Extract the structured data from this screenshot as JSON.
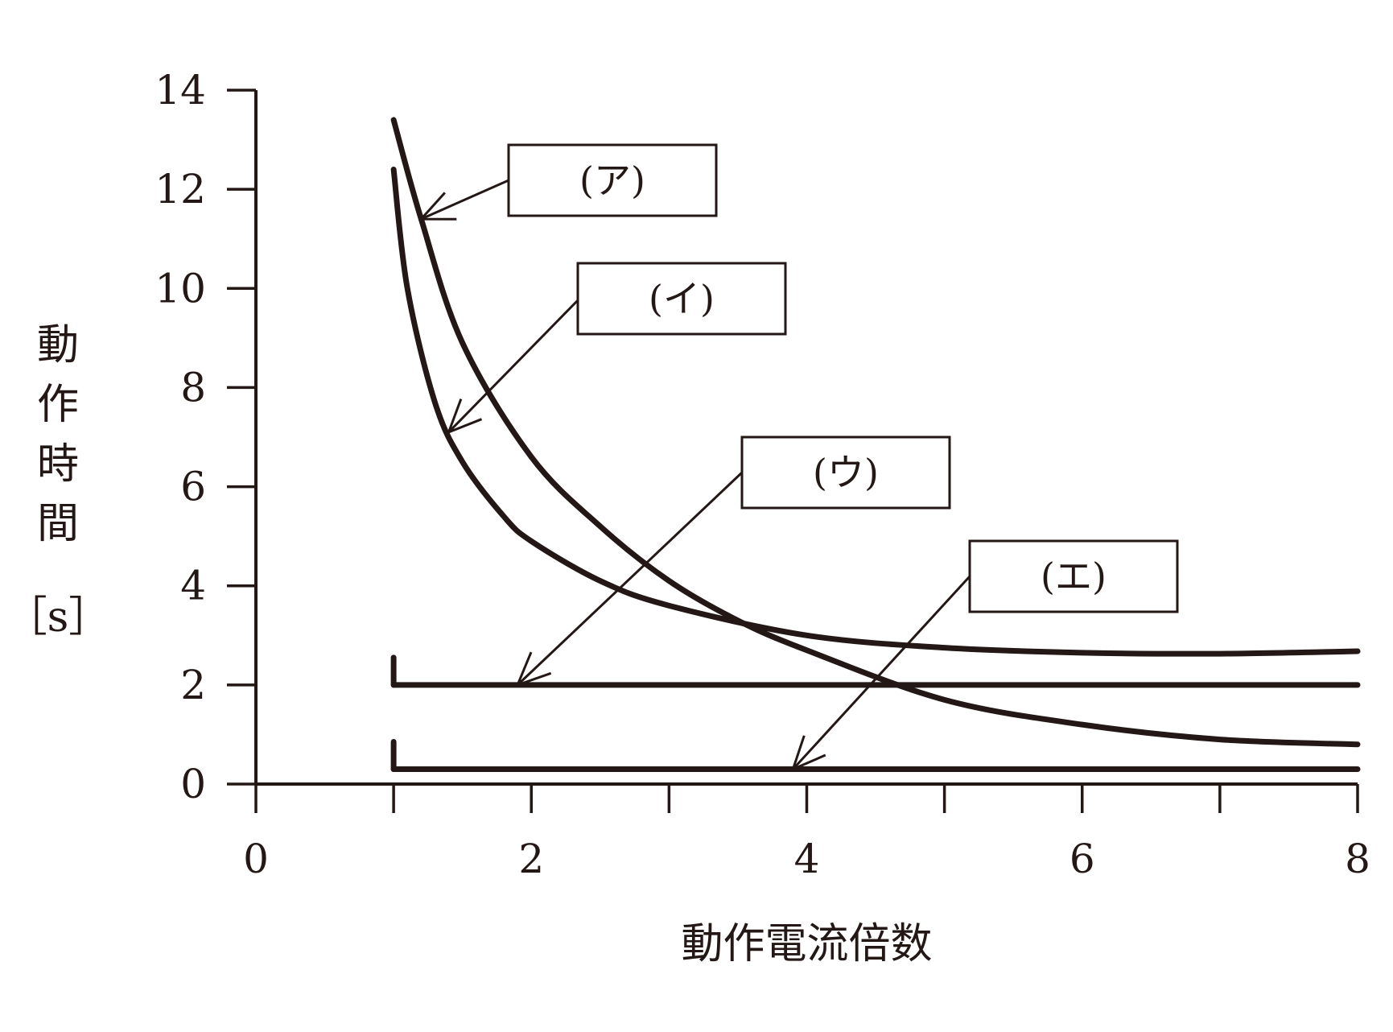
{
  "chart_data": {
    "type": "line",
    "xlabel": "動作電流倍数",
    "ylabel_chars": [
      "動",
      "作",
      "時",
      "間"
    ],
    "ylabel_unit": "［s］",
    "xlim": [
      0,
      8
    ],
    "ylim": [
      0,
      14
    ],
    "x_ticks": [
      0,
      2,
      4,
      6,
      8
    ],
    "y_ticks": [
      0,
      2,
      4,
      6,
      8,
      10,
      12,
      14
    ],
    "grid": false,
    "series": [
      {
        "name": "(ア)",
        "x": [
          1.0,
          1.2,
          1.5,
          2.0,
          2.5,
          3.0,
          3.5,
          4.0,
          5.0,
          6.0,
          7.0,
          8.0
        ],
        "y": [
          13.4,
          11.4,
          8.9,
          6.6,
          5.2,
          4.1,
          3.3,
          2.7,
          1.7,
          1.2,
          0.9,
          0.8
        ]
      },
      {
        "name": "(イ)",
        "x": [
          1.0,
          1.1,
          1.3,
          1.5,
          1.8,
          2.0,
          2.5,
          3.0,
          4.0,
          5.0,
          6.0,
          7.0,
          8.0
        ],
        "y": [
          12.4,
          10.0,
          7.7,
          6.5,
          5.4,
          4.9,
          4.1,
          3.6,
          3.0,
          2.75,
          2.65,
          2.63,
          2.68
        ]
      },
      {
        "name": "(ウ)",
        "x": [
          1.0,
          8.0
        ],
        "y": [
          2.0,
          2.0
        ]
      },
      {
        "name": "(エ)",
        "x": [
          1.0,
          8.0
        ],
        "y": [
          0.3,
          0.3
        ]
      }
    ],
    "annotations": [
      {
        "label": "(ア)",
        "target_x": 1.2,
        "target_y": 11.4
      },
      {
        "label": "(イ)",
        "target_x": 1.4,
        "target_y": 7.1
      },
      {
        "label": "(ウ)",
        "target_x": 1.9,
        "target_y": 2.0
      },
      {
        "label": "(エ)",
        "target_x": 3.9,
        "target_y": 0.3
      }
    ]
  }
}
